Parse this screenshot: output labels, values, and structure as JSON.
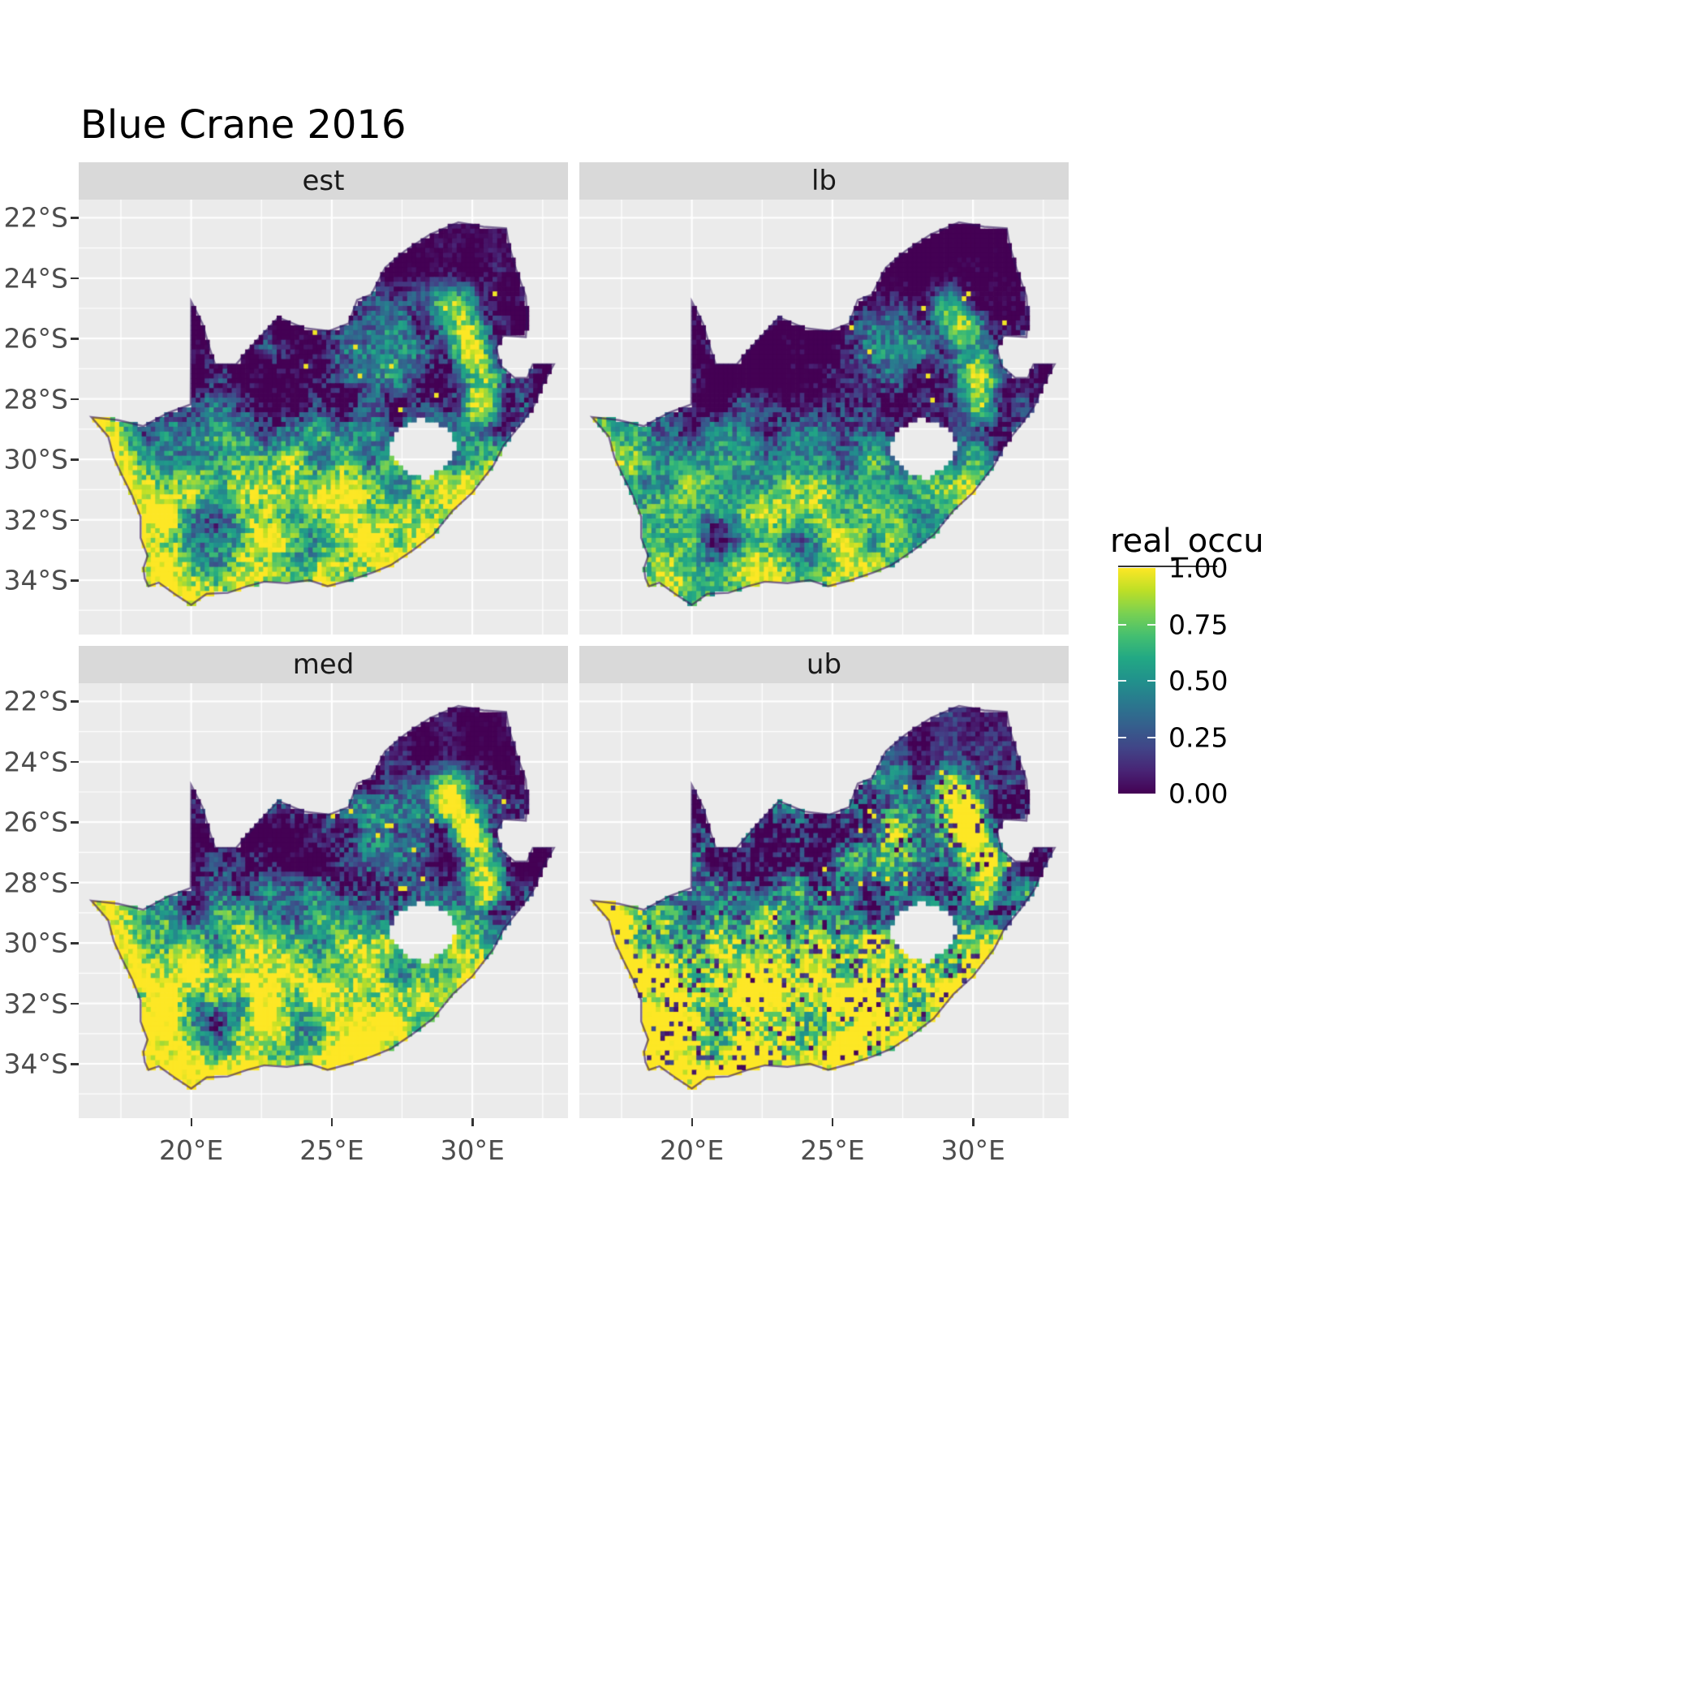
{
  "chart_data": {
    "type": "heatmap",
    "title": "Blue Crane 2016",
    "variable": "real_occu",
    "value_range": [
      0,
      1
    ],
    "facets": [
      "est",
      "lb",
      "med",
      "ub"
    ],
    "axes": {
      "x": {
        "unit": "degrees east",
        "range": [
          16.0,
          33.4
        ],
        "ticks": [
          {
            "value": 20,
            "label": "20°E"
          },
          {
            "value": 25,
            "label": "25°E"
          },
          {
            "value": 30,
            "label": "30°E"
          }
        ],
        "minor": [
          17.5,
          22.5,
          27.5,
          32.5
        ]
      },
      "y": {
        "unit": "degrees south",
        "range": [
          -35.8,
          -21.4
        ],
        "ticks": [
          {
            "value": -22,
            "label": "22°S"
          },
          {
            "value": -24,
            "label": "24°S"
          },
          {
            "value": -26,
            "label": "26°S"
          },
          {
            "value": -28,
            "label": "28°S"
          },
          {
            "value": -30,
            "label": "30°S"
          },
          {
            "value": -32,
            "label": "32°S"
          },
          {
            "value": -34,
            "label": "34°S"
          }
        ],
        "minor": [
          -23,
          -25,
          -27,
          -29,
          -31,
          -33,
          -35
        ]
      }
    },
    "legend": {
      "title": "real_occu",
      "entries": [
        {
          "value": 1.0,
          "label": "1.00"
        },
        {
          "value": 0.75,
          "label": "0.75"
        },
        {
          "value": 0.5,
          "label": "0.50"
        },
        {
          "value": 0.25,
          "label": "0.25"
        },
        {
          "value": 0.0,
          "label": "0.00"
        }
      ]
    },
    "pattern_notes": [
      "Raster map of predicted occupancy (real_occu, 0-1, viridis scale) of Blue Crane over South Africa in 2016, faceted by estimate (est), lower bound (lb), median (med) and upper bound (ub)",
      "High occupancy (~1.0, yellow) along the west coast strip and across the southern Cape between about 31°S and 35°S",
      "Very low occupancy (~0.0, dark purple) across the northern and northeastern interior between about 22°S and 27°S",
      "Intermediate mottled values (teal/green) in a transitional band around 27°S-31°S",
      "A narrow high-occupancy band follows the eastern escarpment near 29°E-31°E, 25°S-29°S, with scattered bright cells in the dark northeast",
      "Lesotho is excluded (no-data hole) around 27°E-29.5°E, 28.6°S-30.7°S",
      "ub facet shows the widest bright (high) extent with dark speckling; lb facet is overall darkest; est and med are similar"
    ],
    "geometry": {
      "south_africa_outline": [
        [
          16.45,
          -28.6
        ],
        [
          17.05,
          -29.25
        ],
        [
          17.25,
          -29.95
        ],
        [
          17.55,
          -30.55
        ],
        [
          17.9,
          -31.2
        ],
        [
          18.2,
          -31.9
        ],
        [
          18.2,
          -32.6
        ],
        [
          18.45,
          -33.2
        ],
        [
          18.3,
          -33.6
        ],
        [
          18.35,
          -33.95
        ],
        [
          18.48,
          -34.2
        ],
        [
          18.85,
          -34.08
        ],
        [
          19.4,
          -34.45
        ],
        [
          20.0,
          -34.82
        ],
        [
          20.55,
          -34.45
        ],
        [
          21.3,
          -34.42
        ],
        [
          22.0,
          -34.2
        ],
        [
          22.6,
          -34.05
        ],
        [
          23.4,
          -34.1
        ],
        [
          24.2,
          -34.0
        ],
        [
          24.85,
          -34.2
        ],
        [
          25.65,
          -34.0
        ],
        [
          26.45,
          -33.75
        ],
        [
          27.1,
          -33.5
        ],
        [
          27.9,
          -33.0
        ],
        [
          28.6,
          -32.5
        ],
        [
          29.3,
          -31.7
        ],
        [
          30.0,
          -31.1
        ],
        [
          30.75,
          -30.2
        ],
        [
          31.1,
          -29.55
        ],
        [
          31.75,
          -28.8
        ],
        [
          32.2,
          -28.2
        ],
        [
          32.45,
          -27.6
        ],
        [
          32.9,
          -26.85
        ],
        [
          32.15,
          -26.85
        ],
        [
          31.95,
          -27.3
        ],
        [
          31.5,
          -27.3
        ],
        [
          31.0,
          -26.9
        ],
        [
          30.85,
          -26.3
        ],
        [
          31.1,
          -25.9
        ],
        [
          31.9,
          -25.95
        ],
        [
          31.95,
          -25.3
        ],
        [
          31.9,
          -24.6
        ],
        [
          31.55,
          -23.7
        ],
        [
          31.3,
          -22.9
        ],
        [
          31.2,
          -22.35
        ],
        [
          30.4,
          -22.3
        ],
        [
          29.5,
          -22.15
        ],
        [
          28.5,
          -22.55
        ],
        [
          27.6,
          -23.1
        ],
        [
          26.9,
          -23.65
        ],
        [
          26.4,
          -24.55
        ],
        [
          25.9,
          -24.72
        ],
        [
          25.6,
          -25.5
        ],
        [
          24.9,
          -25.75
        ],
        [
          24.0,
          -25.65
        ],
        [
          23.1,
          -25.3
        ],
        [
          22.3,
          -26.1
        ],
        [
          21.6,
          -26.85
        ],
        [
          20.85,
          -26.85
        ],
        [
          20.65,
          -26.3
        ],
        [
          20.4,
          -25.5
        ],
        [
          20.0,
          -24.77
        ],
        [
          19.98,
          -28.18
        ],
        [
          19.2,
          -28.45
        ],
        [
          18.3,
          -28.9
        ],
        [
          17.4,
          -28.7
        ]
      ],
      "lesotho_hole": [
        [
          27.0,
          -29.65
        ],
        [
          27.35,
          -28.95
        ],
        [
          28.15,
          -28.6
        ],
        [
          29.0,
          -28.92
        ],
        [
          29.45,
          -29.45
        ],
        [
          29.15,
          -30.1
        ],
        [
          28.35,
          -30.65
        ],
        [
          27.7,
          -30.45
        ],
        [
          27.25,
          -30.05
        ]
      ]
    }
  },
  "style": {
    "panel_bg": "#EBEBEB",
    "strip_bg": "#D9D9D9",
    "grid": "#FFFFFF",
    "axis_text": "#4D4D4D",
    "tick": "#333333",
    "title_color": "#000000",
    "coast_stroke": "rgba(48,16,92,0.6)"
  },
  "render": {
    "viridis": [
      [
        0,
        "#440154"
      ],
      [
        0.1,
        "#482475"
      ],
      [
        0.2,
        "#414487"
      ],
      [
        0.3,
        "#355f8d"
      ],
      [
        0.4,
        "#2a788e"
      ],
      [
        0.5,
        "#21918c"
      ],
      [
        0.6,
        "#22a884"
      ],
      [
        0.7,
        "#44bf70"
      ],
      [
        0.8,
        "#7ad151"
      ],
      [
        0.9,
        "#bddf26"
      ],
      [
        1,
        "#fde725"
      ]
    ],
    "cell_deg": 0.16,
    "coast_profile": [
      [
        -28.2,
        16.45
      ],
      [
        -29,
        17.0
      ],
      [
        -30,
        17.25
      ],
      [
        -31,
        17.8
      ],
      [
        -32,
        18.2
      ],
      [
        -33,
        18.25
      ],
      [
        -34.5,
        18.45
      ]
    ],
    "facet_params": {
      "est": {
        "seed": 11,
        "gain": 1.0,
        "bias": 0.0,
        "noise": 1.0,
        "yellow_dots": 0.012,
        "dark_speckle": 0
      },
      "lb": {
        "seed": 23,
        "gain": 0.93,
        "bias": -0.1,
        "noise": 1.0,
        "yellow_dots": 0.009,
        "dark_speckle": 0
      },
      "med": {
        "seed": 37,
        "gain": 1.03,
        "bias": 0.03,
        "noise": 1.0,
        "yellow_dots": 0.013,
        "dark_speckle": 0
      },
      "ub": {
        "seed": 51,
        "gain": 1.12,
        "bias": 0.1,
        "noise": 1.2,
        "yellow_dots": 0.02,
        "dark_speckle": 0.1
      }
    }
  }
}
